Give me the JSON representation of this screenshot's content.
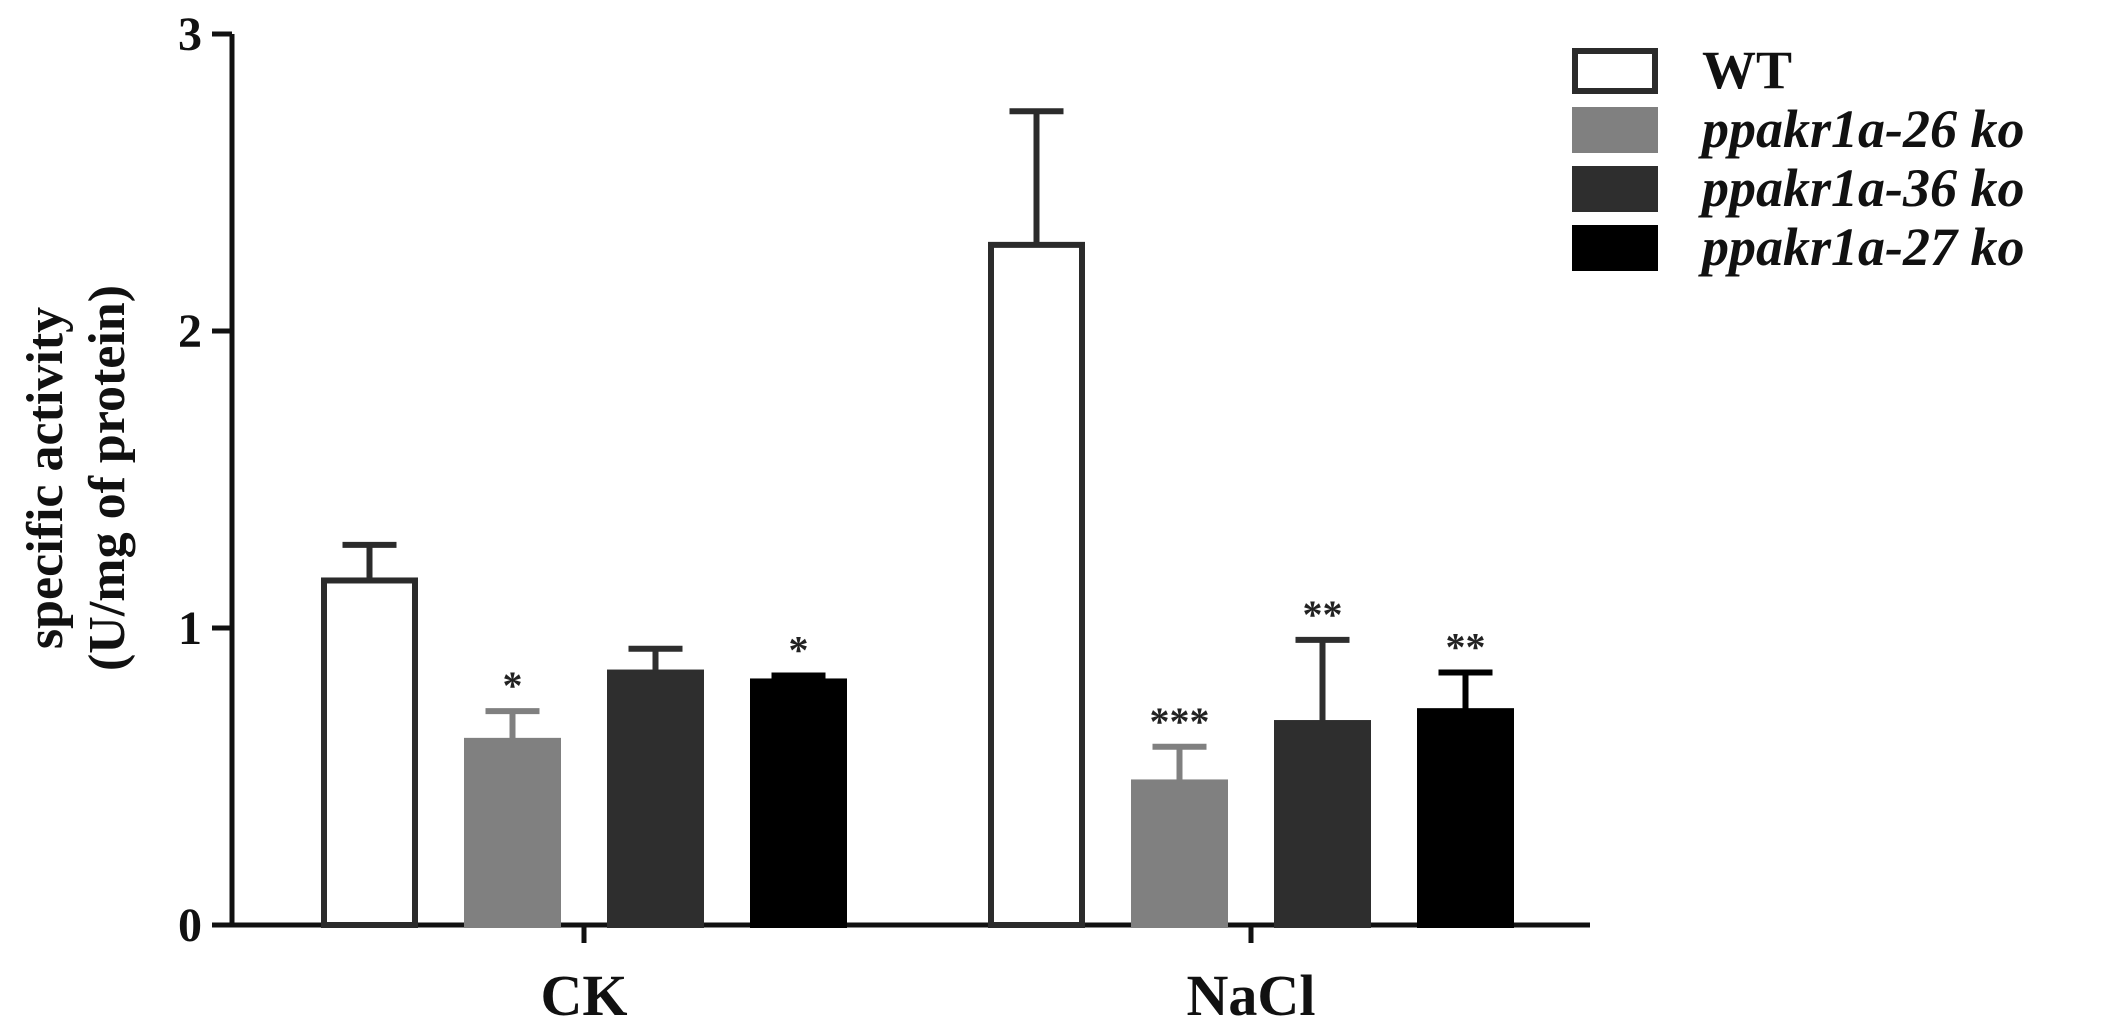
{
  "chart_data": {
    "type": "bar",
    "categories": [
      "CK",
      "NaCl"
    ],
    "ylabel_line1": "specific activity",
    "ylabel_line2": "(U/mg of protein)",
    "ylim": [
      0,
      3
    ],
    "yticks": [
      "0",
      "1",
      "2",
      "3"
    ],
    "error_bars": true,
    "legend_position": "top-right",
    "series": [
      {
        "name": "WT",
        "fill": "#ffffff",
        "stroke": "#2b2b2b",
        "italic": false,
        "values": [
          1.16,
          2.29
        ],
        "errors": [
          0.12,
          0.45
        ],
        "significance": [
          "",
          ""
        ]
      },
      {
        "name": "ppakr1a-26 ko",
        "fill": "#808080",
        "stroke": "#808080",
        "italic": true,
        "values": [
          0.62,
          0.48
        ],
        "errors": [
          0.1,
          0.12
        ],
        "significance": [
          "*",
          "***"
        ]
      },
      {
        "name": "ppakr1a-36 ko",
        "fill": "#2e2e2e",
        "stroke": "#2e2e2e",
        "italic": true,
        "values": [
          0.85,
          0.68
        ],
        "errors": [
          0.08,
          0.28
        ],
        "significance": [
          "",
          "**"
        ]
      },
      {
        "name": "ppakr1a-27 ko",
        "fill": "#000000",
        "stroke": "#000000",
        "italic": true,
        "values": [
          0.82,
          0.72
        ],
        "errors": [
          0.02,
          0.13
        ],
        "significance": [
          "*",
          "**"
        ]
      }
    ]
  }
}
